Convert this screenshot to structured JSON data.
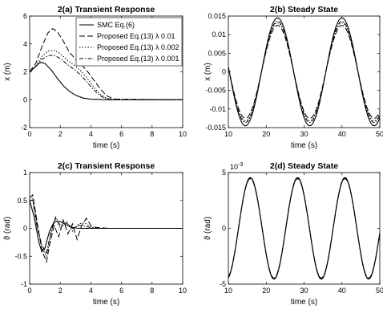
{
  "chart_data": [
    {
      "type": "line",
      "title": "2(a) Transient Response",
      "xlabel": "time (s)",
      "ylabel": "x (m)",
      "xlim": [
        0,
        10
      ],
      "ylim": [
        -2,
        6
      ],
      "xticks": [
        "0",
        "2",
        "4",
        "6",
        "8",
        "10"
      ],
      "yticks": [
        "-2",
        "0",
        "2",
        "4",
        "6"
      ],
      "grid": false,
      "legend": "top-right",
      "series": [
        {
          "name": "SMC Eq.(6)",
          "x": [
            0,
            0.3,
            0.6,
            0.8,
            1.0,
            1.4,
            1.8,
            2.2,
            2.6,
            3.0,
            3.5,
            4.0,
            5.0,
            6.0,
            8.0,
            10.0
          ],
          "y": [
            2.0,
            2.3,
            2.6,
            2.68,
            2.6,
            2.15,
            1.55,
            1.0,
            0.6,
            0.32,
            0.12,
            0.04,
            0.0,
            0.0,
            0.0,
            0.0
          ]
        },
        {
          "name": "Proposed Eq.(13) λ 0.01",
          "x": [
            0,
            0.4,
            0.8,
            1.2,
            1.5,
            1.8,
            2.2,
            2.6,
            3.0,
            3.4,
            3.8,
            4.2,
            4.6,
            5.0,
            5.5,
            6.0,
            10.0
          ],
          "y": [
            2.0,
            2.6,
            3.8,
            4.8,
            5.1,
            4.9,
            4.2,
            3.4,
            2.9,
            2.5,
            2.0,
            1.4,
            0.8,
            0.3,
            0.05,
            0.0,
            0.0
          ]
        },
        {
          "name": "Proposed Eq.(13) λ 0.002",
          "x": [
            0,
            0.4,
            0.8,
            1.2,
            1.6,
            2.0,
            2.5,
            3.0,
            3.4,
            3.8,
            4.2,
            4.6,
            5.0,
            5.5,
            10.0
          ],
          "y": [
            2.0,
            2.4,
            3.1,
            3.5,
            3.55,
            3.3,
            2.8,
            2.4,
            2.0,
            1.5,
            0.9,
            0.4,
            0.12,
            0.0,
            0.0
          ]
        },
        {
          "name": "Proposed Eq.(13) λ 0.001",
          "x": [
            0,
            0.4,
            0.8,
            1.2,
            1.6,
            2.0,
            2.5,
            3.0,
            3.4,
            3.8,
            4.2,
            4.6,
            5.0,
            10.0
          ],
          "y": [
            2.0,
            2.35,
            2.9,
            3.15,
            3.2,
            2.95,
            2.5,
            2.1,
            1.7,
            1.2,
            0.7,
            0.3,
            0.05,
            0.0
          ]
        }
      ]
    },
    {
      "type": "line",
      "title": "2(b) Steady State",
      "xlabel": "time (s)",
      "ylabel": "x (m)",
      "xlim": [
        10,
        50
      ],
      "ylim": [
        -0.015,
        0.015
      ],
      "xticks": [
        "10",
        "20",
        "30",
        "40",
        "50"
      ],
      "yticks": [
        "-0.015",
        "-0.01",
        "-0.005",
        "0",
        "0.005",
        "0.01",
        "0.015"
      ],
      "grid": false,
      "series": [
        {
          "name": "SMC Eq.(6)",
          "amplitude": 0.0145,
          "period": 17,
          "first_peak": 23
        },
        {
          "name": "Proposed Eq.(13) λ 0.01",
          "amplitude": 0.0125,
          "period": 17,
          "first_peak": 23
        },
        {
          "name": "Proposed Eq.(13) λ 0.002",
          "amplitude": 0.0132,
          "period": 17,
          "first_peak": 23
        },
        {
          "name": "Proposed Eq.(13) λ 0.001",
          "amplitude": 0.0136,
          "period": 17,
          "first_peak": 23
        }
      ]
    },
    {
      "type": "line",
      "title": "2(c) Transient Response",
      "xlabel": "time (s)",
      "ylabel": "ϑ (rad)",
      "xlim": [
        0,
        10
      ],
      "ylim": [
        -1,
        1
      ],
      "xticks": [
        "0",
        "2",
        "4",
        "6",
        "8",
        "10"
      ],
      "yticks": [
        "-1",
        "-0.5",
        "0",
        "0.5",
        "1"
      ],
      "grid": false,
      "series": [
        {
          "name": "SMC Eq.(6)",
          "x": [
            0,
            0.3,
            0.6,
            0.8,
            1.0,
            1.3,
            1.6,
            2.0,
            2.4,
            2.8,
            3.2,
            3.8,
            4.5,
            10.0
          ],
          "y": [
            0.5,
            0.2,
            -0.25,
            -0.42,
            -0.35,
            -0.05,
            0.12,
            0.12,
            0.06,
            0.02,
            0.0,
            0.0,
            0.0,
            0.0
          ]
        },
        {
          "name": "Proposed Eq.(13) λ 0.01",
          "x": [
            0,
            0.2,
            0.5,
            0.8,
            1.1,
            1.3,
            1.6,
            1.9,
            2.2,
            2.5,
            2.8,
            3.1,
            3.4,
            3.7,
            4.0,
            4.3,
            4.7,
            5.2,
            10.0
          ],
          "y": [
            0.55,
            0.6,
            0.1,
            -0.4,
            -0.6,
            -0.3,
            0.05,
            -0.15,
            0.15,
            -0.1,
            0.08,
            -0.2,
            0.05,
            0.18,
            0.05,
            0.02,
            0.01,
            0.0,
            0.0
          ]
        },
        {
          "name": "Proposed Eq.(13) λ 0.002",
          "x": [
            0,
            0.2,
            0.5,
            0.8,
            1.1,
            1.4,
            1.7,
            2.0,
            2.4,
            2.8,
            3.2,
            3.6,
            4.0,
            4.6,
            10.0
          ],
          "y": [
            0.5,
            0.55,
            0.05,
            -0.35,
            -0.5,
            -0.1,
            0.18,
            0.0,
            0.12,
            -0.05,
            0.08,
            0.1,
            0.02,
            0.0,
            0.0
          ]
        },
        {
          "name": "Proposed Eq.(13) λ 0.001",
          "x": [
            0,
            0.2,
            0.5,
            0.8,
            1.1,
            1.4,
            1.7,
            2.0,
            2.4,
            2.8,
            3.2,
            3.6,
            4.2,
            10.0
          ],
          "y": [
            0.5,
            0.5,
            0.0,
            -0.3,
            -0.45,
            -0.05,
            0.2,
            0.05,
            0.1,
            0.0,
            0.05,
            0.04,
            0.0,
            0.0
          ]
        }
      ]
    },
    {
      "type": "line",
      "title": "2(d) Steady State",
      "xlabel": "time (s)",
      "ylabel": "ϑ (rad)",
      "exponent": "10",
      "exponent_power": "-3",
      "xlim": [
        10,
        50
      ],
      "ylim": [
        -5,
        5
      ],
      "xticks": [
        "10",
        "20",
        "30",
        "40",
        "50"
      ],
      "yticks": [
        "-5",
        "0",
        "5"
      ],
      "grid": false,
      "series": [
        {
          "name": "SMC Eq.(6)",
          "amplitude": 4.55,
          "period": 12.5,
          "first_peak": 15.8
        },
        {
          "name": "Proposed Eq.(13) λ 0.01",
          "amplitude": 4.45,
          "period": 12.5,
          "first_peak": 15.8
        },
        {
          "name": "Proposed Eq.(13) λ 0.002",
          "amplitude": 4.5,
          "period": 12.5,
          "first_peak": 15.8
        },
        {
          "name": "Proposed Eq.(13) λ 0.001",
          "amplitude": 4.52,
          "period": 12.5,
          "first_peak": 15.8
        }
      ]
    }
  ]
}
